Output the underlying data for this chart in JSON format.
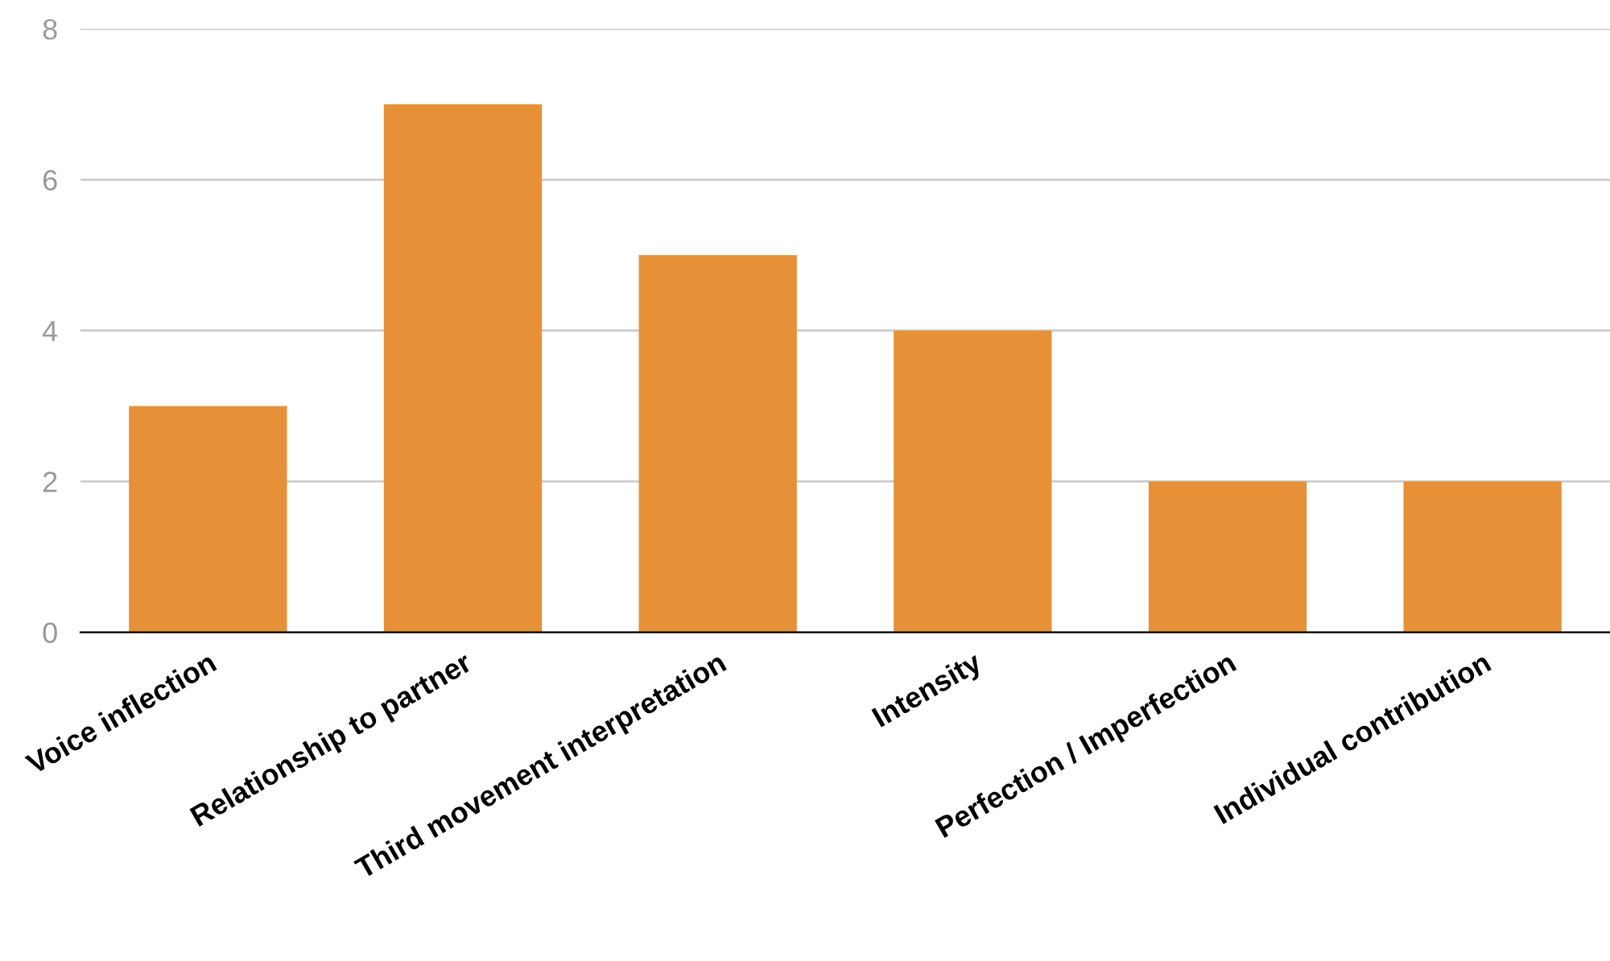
{
  "chart_data": {
    "type": "bar",
    "categories": [
      "Voice inflection",
      "Relationship to partner",
      "Third movement interpretation",
      "Intensity",
      "Perfection / Imperfection",
      "Individual contribution"
    ],
    "values": [
      3,
      7,
      5,
      4,
      2,
      2
    ],
    "color": "#e69138",
    "ylim": [
      0,
      8
    ],
    "yticks": [
      0,
      2,
      4,
      6,
      8
    ],
    "grid": "y",
    "legend": false
  }
}
